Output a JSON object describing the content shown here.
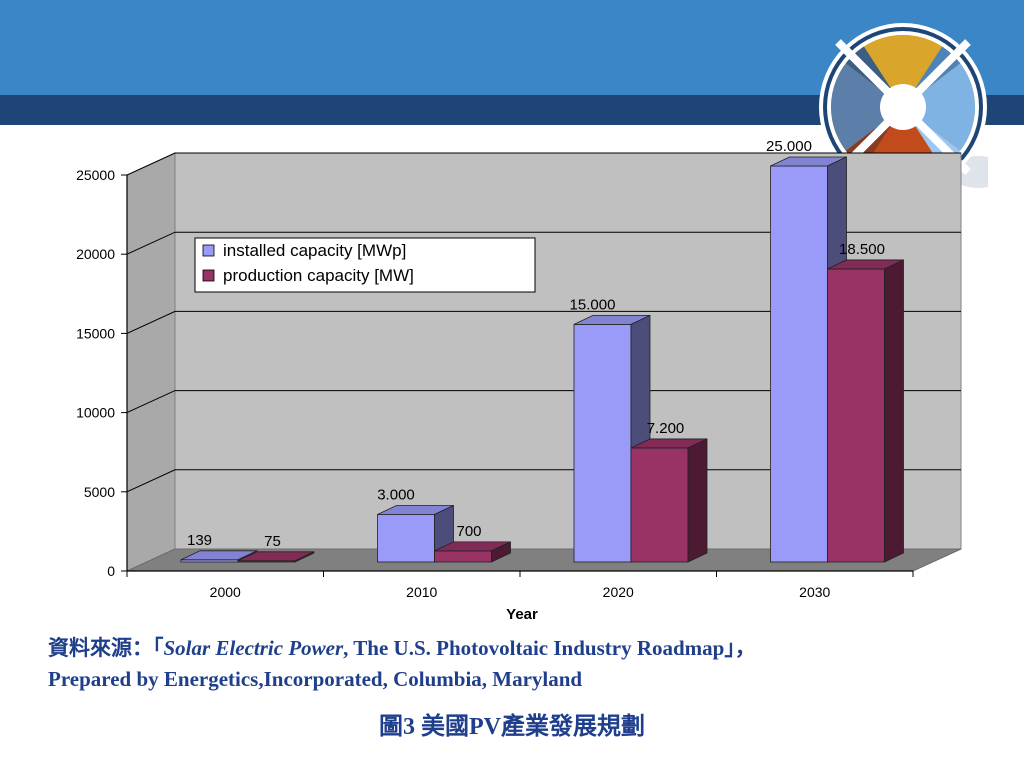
{
  "slide": {
    "caption_line1_prefix": "資料來源：「",
    "caption_line1_italic": "Solar Electric Power",
    "caption_line1_suffix": ", The U.S. Photovoltaic Industry Roadmap」，",
    "caption_line2": "Prepared by Energetics,Incorporated, Columbia, Maryland",
    "figure_title": "圖3  美國PV產業發展規劃",
    "colors": {
      "top_band": "#3b86c6",
      "bottom_band": "#1d4676",
      "caption_text": "#1f3f8c"
    }
  },
  "chart_data": {
    "type": "bar",
    "categories": [
      "2000",
      "2010",
      "2020",
      "2030"
    ],
    "series": [
      {
        "name": "installed capacity [MWp]",
        "values": [
          139,
          3000,
          15000,
          25000
        ],
        "labels": [
          "139",
          "3.000",
          "15.000",
          "25.000"
        ],
        "color": "#9a9af8"
      },
      {
        "name": "production capacity [MW]",
        "values": [
          75,
          700,
          7200,
          18500
        ],
        "labels": [
          "75",
          "700",
          "7.200",
          "18.500"
        ],
        "color": "#993366"
      }
    ],
    "xlabel": "Year",
    "ylabel": "",
    "ylim": [
      0,
      25000
    ],
    "yticks": [
      0,
      5000,
      10000,
      15000,
      20000,
      25000
    ],
    "grid": true,
    "legend_position": "top-left",
    "style": "3d-column"
  }
}
